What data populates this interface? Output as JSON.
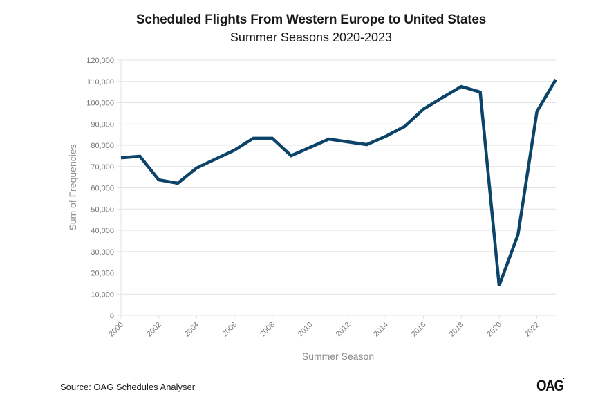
{
  "chart_data": {
    "type": "line",
    "title": "Scheduled Flights From Western Europe to United States",
    "subtitle": "Summer Seasons 2020-2023",
    "xlabel": "Summer Season",
    "ylabel": "Sum of Frequencies",
    "ylim": [
      0,
      120000
    ],
    "xlim": [
      2000,
      2023
    ],
    "y_ticks": [
      "0",
      "10,000",
      "20,000",
      "30,000",
      "40,000",
      "50,000",
      "60,000",
      "70,000",
      "80,000",
      "90,000",
      "100,000",
      "110,000",
      "120,000"
    ],
    "y_tick_values": [
      0,
      10000,
      20000,
      30000,
      40000,
      50000,
      60000,
      70000,
      80000,
      90000,
      100000,
      110000,
      120000
    ],
    "x_ticks": [
      "2000",
      "2002",
      "2004",
      "2006",
      "2008",
      "2010",
      "2012",
      "2014",
      "2016",
      "2018",
      "2020",
      "2022"
    ],
    "x_tick_values": [
      2000,
      2002,
      2004,
      2006,
      2008,
      2010,
      2012,
      2014,
      2016,
      2018,
      2020,
      2022
    ],
    "grid": true,
    "series": [
      {
        "name": "Sum of Frequencies",
        "color": "#0b4468",
        "x": [
          2000,
          2001,
          2002,
          2003,
          2004,
          2005,
          2006,
          2007,
          2008,
          2009,
          2010,
          2011,
          2012,
          2013,
          2014,
          2015,
          2016,
          2017,
          2018,
          2019,
          2020,
          2021,
          2022,
          2023
        ],
        "values": [
          74100,
          74800,
          63700,
          62100,
          69300,
          73500,
          77700,
          83300,
          83300,
          75100,
          79000,
          82900,
          81600,
          80300,
          84200,
          88800,
          97000,
          102400,
          107600,
          105000,
          14000,
          38000,
          95900,
          110900
        ]
      }
    ]
  },
  "footer": {
    "source_prefix": "Source: ",
    "source_link": "OAG Schedules Analyser",
    "logo_text": "OAG",
    "logo_mark": "•"
  }
}
